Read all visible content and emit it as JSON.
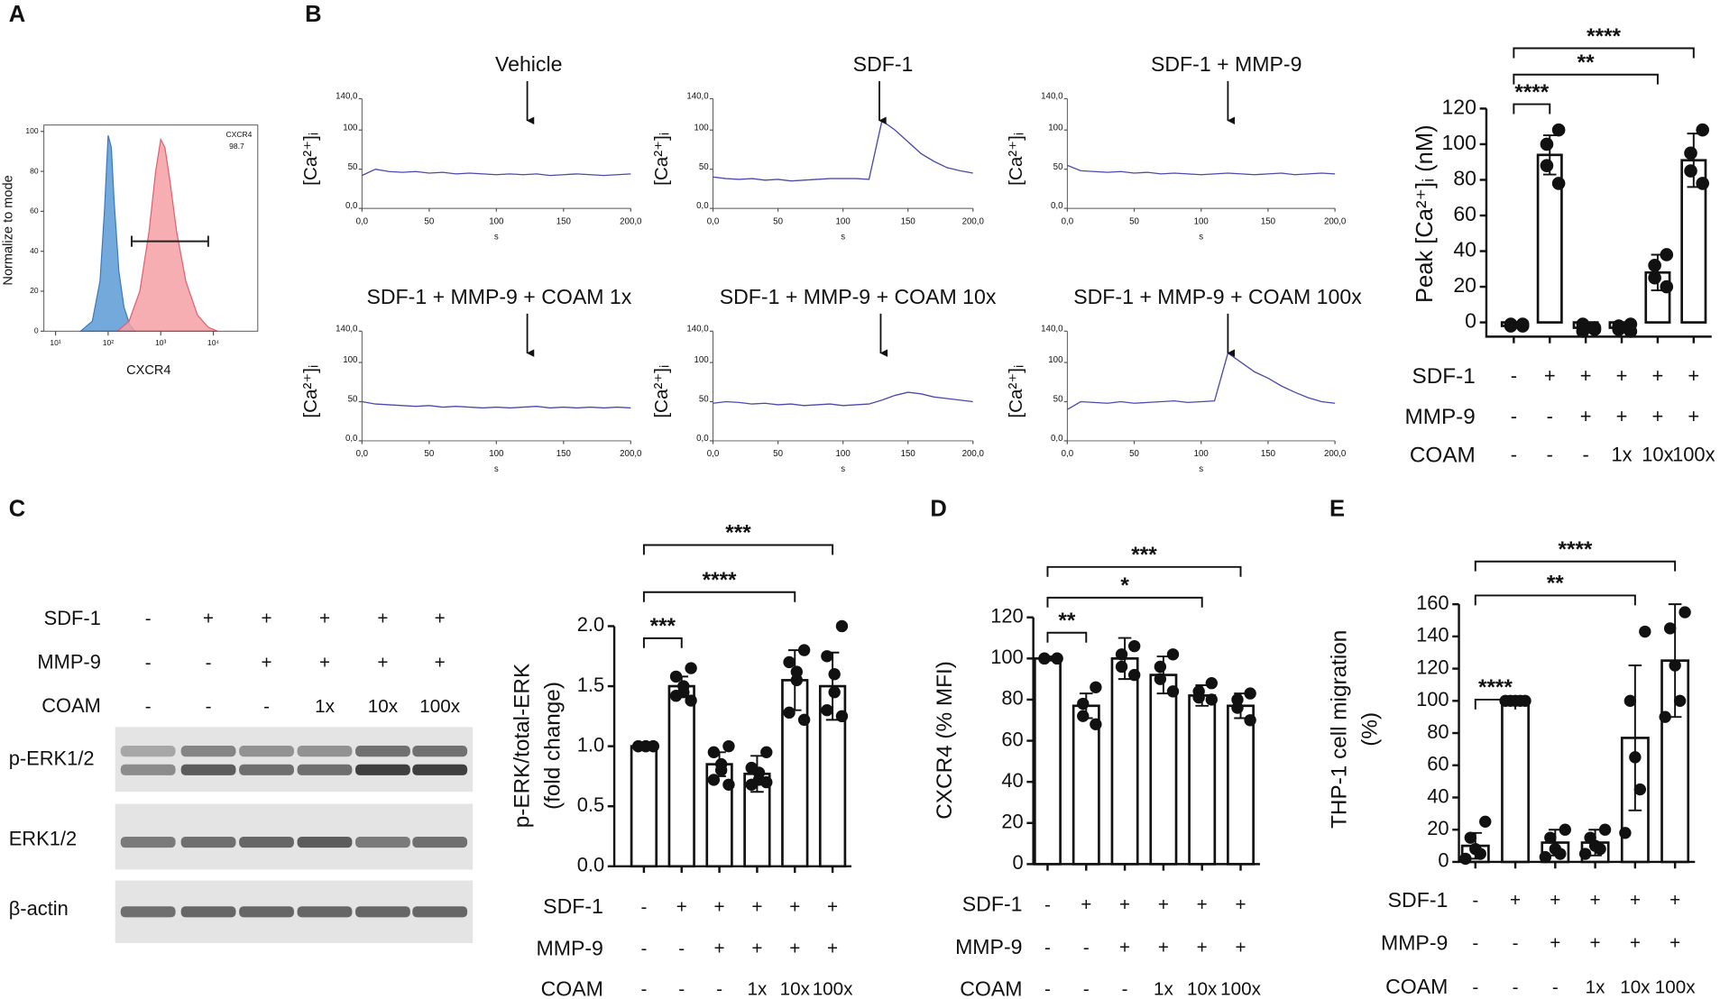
{
  "panel_labels": [
    "A",
    "B",
    "C",
    "D",
    "E"
  ],
  "blot": {
    "conditions": [
      {
        "name": "SDF-1",
        "values": [
          "-",
          "+",
          "+",
          "+",
          "+",
          "+"
        ]
      },
      {
        "name": "MMP-9",
        "values": [
          "-",
          "-",
          "+",
          "+",
          "+",
          "+"
        ]
      },
      {
        "name": "COAM",
        "values": [
          "-",
          "-",
          "-",
          "1x",
          "10x",
          "100x"
        ]
      }
    ],
    "rows": [
      "p-ERK1/2",
      "ERK1/2",
      "β-actin"
    ]
  },
  "chart_data": [
    {
      "type": "area",
      "ylabel": "Normalize to mode",
      "xlabel": "CXCR4",
      "log_x": true,
      "xlim": [
        6,
        70000
      ],
      "ylim": [
        0,
        101
      ],
      "yticks": [
        0,
        20,
        40,
        60,
        80,
        100
      ],
      "xticks": [
        {
          "value": 10,
          "label": "10¹"
        },
        {
          "value": 100,
          "label": "10²"
        },
        {
          "value": 1000,
          "label": "10³"
        },
        {
          "value": 10000,
          "label": "10⁴"
        }
      ],
      "annotations": [
        "CXCR4",
        "98.7"
      ],
      "gate": {
        "x": [
          280,
          8000
        ],
        "y": 45
      },
      "series": [
        {
          "color": "#5b9bd5",
          "x": [
            30,
            50,
            70,
            85,
            100,
            115,
            130,
            160,
            200,
            260,
            330
          ],
          "values": [
            0,
            5,
            25,
            60,
            98,
            92,
            65,
            30,
            12,
            3,
            0
          ]
        },
        {
          "color": "#f4a0a6",
          "x": [
            150,
            250,
            400,
            600,
            800,
            1000,
            1200,
            1500,
            2000,
            3000,
            5000,
            8000,
            12000
          ],
          "values": [
            0,
            5,
            20,
            50,
            80,
            96,
            92,
            75,
            50,
            25,
            8,
            2,
            0
          ]
        }
      ]
    },
    {
      "type": "line",
      "title": "Vehicle",
      "ylabel": "[Ca²⁺]ᵢ",
      "xlabel": "s",
      "xlim": [
        0,
        200
      ],
      "ylim": [
        0,
        140
      ],
      "xticks": [
        {
          "value": 0,
          "label": "0,0"
        },
        50,
        100,
        150,
        {
          "value": 200,
          "label": "200,0"
        }
      ],
      "yticks": [
        {
          "value": 0,
          "label": "0,0"
        },
        50,
        100,
        {
          "value": 140,
          "label": "140,0"
        }
      ],
      "color": "#4b4ba8",
      "arrow_x": 123,
      "x": [
        0,
        10,
        20,
        30,
        40,
        50,
        60,
        70,
        80,
        90,
        100,
        110,
        120,
        130,
        140,
        150,
        160,
        170,
        180,
        190,
        200
      ],
      "values": [
        42,
        50,
        47,
        46,
        47,
        45,
        46,
        44,
        45,
        44,
        43,
        44,
        43,
        44,
        42,
        43,
        44,
        43,
        42,
        43,
        44
      ]
    },
    {
      "type": "line",
      "title": "SDF-1",
      "ylabel": "[Ca²⁺]ᵢ",
      "xlabel": "s",
      "xlim": [
        0,
        200
      ],
      "ylim": [
        0,
        140
      ],
      "xticks": [
        {
          "value": 0,
          "label": "0,0"
        },
        50,
        100,
        150,
        {
          "value": 200,
          "label": "200,0"
        }
      ],
      "yticks": [
        {
          "value": 0,
          "label": "0,0"
        },
        50,
        100,
        {
          "value": 140,
          "label": "140,0"
        }
      ],
      "color": "#4b4ba8",
      "arrow_x": 128,
      "x": [
        0,
        10,
        20,
        30,
        40,
        50,
        60,
        70,
        80,
        90,
        100,
        110,
        120,
        130,
        140,
        150,
        160,
        170,
        180,
        190,
        200
      ],
      "values": [
        40,
        38,
        37,
        38,
        36,
        37,
        35,
        36,
        37,
        38,
        38,
        38,
        37,
        112,
        100,
        85,
        70,
        60,
        52,
        48,
        45
      ]
    },
    {
      "type": "line",
      "title": "SDF-1 + MMP-9",
      "ylabel": "[Ca²⁺]ᵢ",
      "xlabel": "s",
      "xlim": [
        0,
        200
      ],
      "ylim": [
        0,
        140
      ],
      "xticks": [
        {
          "value": 0,
          "label": "0,0"
        },
        50,
        100,
        150,
        {
          "value": 200,
          "label": "200,0"
        }
      ],
      "yticks": [
        {
          "value": 0,
          "label": "0,0"
        },
        50,
        100,
        {
          "value": 140,
          "label": "140,0"
        }
      ],
      "color": "#4b4ba8",
      "arrow_x": 120,
      "x": [
        0,
        10,
        20,
        30,
        40,
        50,
        60,
        70,
        80,
        90,
        100,
        110,
        120,
        130,
        140,
        150,
        160,
        170,
        180,
        190,
        200
      ],
      "values": [
        55,
        48,
        47,
        46,
        47,
        45,
        46,
        44,
        45,
        44,
        43,
        44,
        45,
        44,
        43,
        44,
        45,
        43,
        44,
        45,
        44
      ]
    },
    {
      "type": "line",
      "title": "SDF-1 + MMP-9 + COAM 1x",
      "ylabel": "[Ca²⁺]ᵢ",
      "xlabel": "s",
      "xlim": [
        0,
        200
      ],
      "ylim": [
        0,
        140
      ],
      "xticks": [
        {
          "value": 0,
          "label": "0,0"
        },
        50,
        100,
        150,
        {
          "value": 200,
          "label": "200,0"
        }
      ],
      "yticks": [
        {
          "value": 0,
          "label": "0,0"
        },
        50,
        100,
        {
          "value": 140,
          "label": "140,0"
        }
      ],
      "color": "#4b4ba8",
      "arrow_x": 123,
      "x": [
        0,
        10,
        20,
        30,
        40,
        50,
        60,
        70,
        80,
        90,
        100,
        110,
        120,
        130,
        140,
        150,
        160,
        170,
        180,
        190,
        200
      ],
      "values": [
        50,
        47,
        46,
        45,
        44,
        45,
        43,
        44,
        43,
        42,
        43,
        42,
        43,
        44,
        42,
        43,
        42,
        43,
        42,
        43,
        42
      ]
    },
    {
      "type": "line",
      "title": "SDF-1 + MMP-9 + COAM 10x",
      "ylabel": "[Ca²⁺]ᵢ",
      "xlabel": "s",
      "xlim": [
        0,
        200
      ],
      "ylim": [
        0,
        140
      ],
      "xticks": [
        {
          "value": 0,
          "label": "0,0"
        },
        50,
        100,
        150,
        {
          "value": 200,
          "label": "200,0"
        }
      ],
      "yticks": [
        {
          "value": 0,
          "label": "0,0"
        },
        50,
        100,
        {
          "value": 140,
          "label": "140,0"
        }
      ],
      "color": "#4b4ba8",
      "arrow_x": 129,
      "x": [
        0,
        10,
        20,
        30,
        40,
        50,
        60,
        70,
        80,
        90,
        100,
        110,
        120,
        130,
        140,
        150,
        160,
        170,
        180,
        190,
        200
      ],
      "values": [
        48,
        50,
        49,
        47,
        48,
        46,
        47,
        45,
        46,
        47,
        45,
        46,
        47,
        52,
        58,
        62,
        60,
        56,
        54,
        52,
        50
      ]
    },
    {
      "type": "line",
      "title": "SDF-1 + MMP-9 + COAM 100x",
      "ylabel": "[Ca²⁺]ᵢ",
      "xlabel": "s",
      "xlim": [
        0,
        200
      ],
      "ylim": [
        0,
        140
      ],
      "xticks": [
        {
          "value": 0,
          "label": "0,0"
        },
        50,
        100,
        150,
        {
          "value": 200,
          "label": "200,0"
        }
      ],
      "yticks": [
        {
          "value": 0,
          "label": "0,0"
        },
        50,
        100,
        {
          "value": 140,
          "label": "140,0"
        }
      ],
      "color": "#4b4ba8",
      "arrow_x": 120,
      "x": [
        0,
        10,
        20,
        30,
        40,
        50,
        60,
        70,
        80,
        90,
        100,
        110,
        120,
        130,
        140,
        150,
        160,
        170,
        180,
        190,
        200
      ],
      "values": [
        40,
        50,
        49,
        48,
        50,
        48,
        49,
        50,
        51,
        49,
        50,
        51,
        112,
        100,
        88,
        80,
        70,
        62,
        55,
        50,
        48
      ]
    },
    {
      "type": "bar",
      "ylabel": [
        "Peak [Ca²⁺]ᵢ (nM)"
      ],
      "ylim": [
        -8,
        120
      ],
      "yticks": [
        0,
        20,
        40,
        60,
        80,
        100,
        120
      ],
      "values": [
        -2,
        94,
        -3,
        -3,
        28,
        91
      ],
      "errors": [
        1,
        11,
        2,
        2,
        10,
        15
      ],
      "points": [
        [
          -2,
          -1,
          -2,
          -1
        ],
        [
          108,
          100,
          88,
          78
        ],
        [
          -4,
          -1,
          -5,
          -3
        ],
        [
          -1,
          -4,
          -2,
          -5
        ],
        [
          38,
          32,
          25,
          20
        ],
        [
          108,
          95,
          85,
          78
        ]
      ],
      "conditions": [
        {
          "name": "SDF-1",
          "values": [
            "-",
            "+",
            "+",
            "+",
            "+",
            "+"
          ]
        },
        {
          "name": "MMP-9",
          "values": [
            "-",
            "-",
            "+",
            "+",
            "+",
            "+"
          ]
        },
        {
          "name": "COAM",
          "values": [
            "-",
            "-",
            "-",
            "1x",
            "10x",
            "100x"
          ]
        }
      ],
      "brackets": [
        {
          "from": 0,
          "to": 1,
          "label": "****"
        },
        {
          "from": 0,
          "to": 4,
          "label": "**"
        },
        {
          "from": 0,
          "to": 5,
          "label": "****"
        }
      ]
    },
    {
      "type": "bar",
      "ylabel": [
        "p-ERK/total-ERK",
        "(fold change)"
      ],
      "ylim": [
        0,
        2
      ],
      "yticks": [
        {
          "value": 0,
          "label": "0.0"
        },
        0.5,
        {
          "value": 1,
          "label": "1.0"
        },
        1.5,
        {
          "value": 2,
          "label": "2.0"
        }
      ],
      "values": [
        1.0,
        1.5,
        0.85,
        0.77,
        1.55,
        1.5
      ],
      "errors": [
        0.01,
        0.08,
        0.1,
        0.15,
        0.25,
        0.28
      ],
      "points": [
        [
          1.0,
          1.0,
          1.0,
          1.0,
          1.0,
          1.0
        ],
        [
          1.65,
          1.58,
          1.5,
          1.45,
          1.42,
          1.38
        ],
        [
          1.0,
          0.95,
          0.85,
          0.8,
          0.72,
          0.68
        ],
        [
          0.95,
          0.82,
          0.78,
          0.72,
          0.68,
          0.7
        ],
        [
          1.8,
          1.7,
          1.62,
          1.55,
          1.28,
          1.22
        ],
        [
          2.0,
          1.75,
          1.6,
          1.45,
          1.3,
          1.25
        ]
      ],
      "conditions": [
        {
          "name": "SDF-1",
          "values": [
            "-",
            "+",
            "+",
            "+",
            "+",
            "+"
          ]
        },
        {
          "name": "MMP-9",
          "values": [
            "-",
            "-",
            "+",
            "+",
            "+",
            "+"
          ]
        },
        {
          "name": "COAM",
          "values": [
            "-",
            "-",
            "-",
            "1x",
            "10x",
            "100x"
          ]
        }
      ],
      "brackets": [
        {
          "from": 0,
          "to": 1,
          "label": "***"
        },
        {
          "from": 0,
          "to": 4,
          "label": "****"
        },
        {
          "from": 0,
          "to": 5,
          "label": "***"
        }
      ]
    },
    {
      "type": "bar",
      "ylabel": [
        "CXCR4 (% MFI)"
      ],
      "ylim": [
        0,
        120
      ],
      "yticks": [
        0,
        20,
        40,
        60,
        80,
        100,
        120
      ],
      "values": [
        100,
        77,
        100,
        92,
        82,
        77
      ],
      "errors": [
        1,
        6,
        10,
        9,
        5,
        6
      ],
      "points": [
        [
          100,
          100,
          100,
          100
        ],
        [
          86,
          78,
          72,
          68
        ],
        [
          106,
          102,
          96,
          92
        ],
        [
          102,
          96,
          90,
          84
        ],
        [
          88,
          84,
          81,
          80
        ],
        [
          83,
          80,
          76,
          70
        ]
      ],
      "conditions": [
        {
          "name": "SDF-1",
          "values": [
            "-",
            "+",
            "+",
            "+",
            "+",
            "+"
          ]
        },
        {
          "name": "MMP-9",
          "values": [
            "-",
            "-",
            "+",
            "+",
            "+",
            "+"
          ]
        },
        {
          "name": "COAM",
          "values": [
            "-",
            "-",
            "-",
            "1x",
            "10x",
            "100x"
          ]
        }
      ],
      "brackets": [
        {
          "from": 0,
          "to": 1,
          "label": "**"
        },
        {
          "from": 0,
          "to": 4,
          "label": "*"
        },
        {
          "from": 0,
          "to": 5,
          "label": "***"
        }
      ]
    },
    {
      "type": "bar",
      "ylabel": [
        "THP-1 cell migration",
        "(%)"
      ],
      "ylim": [
        0,
        160
      ],
      "yticks": [
        0,
        20,
        40,
        60,
        80,
        100,
        120,
        140,
        160
      ],
      "values": [
        10,
        100,
        12,
        12,
        77,
        125
      ],
      "errors": [
        8,
        1,
        8,
        8,
        45,
        35
      ],
      "points": [
        [
          25,
          15,
          8,
          5,
          2
        ],
        [
          100,
          100,
          100,
          100,
          100
        ],
        [
          20,
          15,
          8,
          5,
          3
        ],
        [
          20,
          15,
          10,
          8,
          5
        ],
        [
          143,
          100,
          65,
          45,
          18
        ],
        [
          155,
          145,
          122,
          100,
          90
        ]
      ],
      "conditions": [
        {
          "name": "SDF-1",
          "values": [
            "-",
            "+",
            "+",
            "+",
            "+",
            "+"
          ]
        },
        {
          "name": "MMP-9",
          "values": [
            "-",
            "-",
            "+",
            "+",
            "+",
            "+"
          ]
        },
        {
          "name": "COAM",
          "values": [
            "-",
            "-",
            "-",
            "1x",
            "10x",
            "100x"
          ]
        }
      ],
      "brackets": [
        {
          "from": 0,
          "to": 1,
          "label": "****"
        },
        {
          "from": 0,
          "to": 4,
          "label": "**"
        },
        {
          "from": 0,
          "to": 5,
          "label": "****"
        }
      ]
    }
  ]
}
